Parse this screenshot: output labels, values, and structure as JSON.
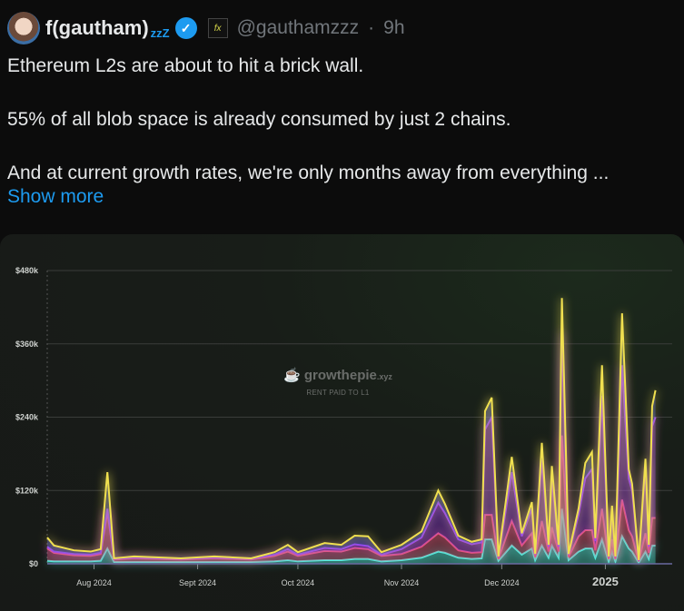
{
  "tweet": {
    "author_name": "f(gautham)",
    "name_suffix": "zzZ",
    "affiliate_badge": "fx",
    "handle": "@gauthamzzz",
    "separator": "·",
    "time": "9h",
    "paragraphs": [
      "Ethereum L2s are about to hit a brick wall.",
      "55% of all blob space is already consumed by just 2 chains.",
      "And at current growth rates, we're only months away from everything ..."
    ],
    "show_more": "Show more",
    "icons": {
      "verified": "verified-badge-icon",
      "avatar": "avatar"
    }
  },
  "watermark": {
    "brand": "growthepie",
    "brand_suffix": ".xyz",
    "subtitle": "RENT PAID TO L1"
  },
  "chart_data": {
    "type": "area",
    "stacked": true,
    "title": "RENT PAID TO L1",
    "ylim": [
      0,
      480
    ],
    "xlim": [
      "2024-07-18",
      "2025-01-21"
    ],
    "y_ticks": [
      "$0",
      "$120k",
      "$240k",
      "$360k",
      "$480k"
    ],
    "y_tick_values": [
      0,
      120,
      240,
      360,
      480
    ],
    "x_ticks": [
      "Aug 2024",
      "Sept 2024",
      "Oct 2024",
      "Nov 2024",
      "Dec 2024",
      "2025"
    ],
    "x_tick_dates": [
      "2024-08-01",
      "2024-09-01",
      "2024-10-01",
      "2024-11-01",
      "2024-12-01",
      "2025-01-01"
    ],
    "grid": true,
    "legend": "none",
    "colors": [
      "#4ff0e0",
      "#e8557a",
      "#a040f0",
      "#4a5cf0",
      "#f0e050",
      "#e8e8e8"
    ],
    "x": [
      "2024-07-18",
      "2024-07-20",
      "2024-07-26",
      "2024-07-31",
      "2024-08-03",
      "2024-08-05",
      "2024-08-07",
      "2024-08-13",
      "2024-08-27",
      "2024-09-06",
      "2024-09-17",
      "2024-09-24",
      "2024-09-28",
      "2024-10-01",
      "2024-10-09",
      "2024-10-14",
      "2024-10-18",
      "2024-10-22",
      "2024-10-26",
      "2024-11-01",
      "2024-11-07",
      "2024-11-12",
      "2024-11-14",
      "2024-11-18",
      "2024-11-22",
      "2024-11-25",
      "2024-11-26",
      "2024-11-28",
      "2024-11-30",
      "2024-12-04",
      "2024-12-07",
      "2024-12-10",
      "2024-12-11",
      "2024-12-13",
      "2024-12-15",
      "2024-12-16",
      "2024-12-18",
      "2024-12-19",
      "2024-12-21",
      "2024-12-24",
      "2024-12-26",
      "2024-12-28",
      "2024-12-29",
      "2024-12-31",
      "2025-01-02",
      "2025-01-03",
      "2025-01-04",
      "2025-01-06",
      "2025-01-08",
      "2025-01-09",
      "2025-01-11",
      "2025-01-13",
      "2025-01-14",
      "2025-01-15",
      "2025-01-16"
    ],
    "series": [
      {
        "values": [
          5,
          4,
          4,
          4,
          5,
          25,
          3,
          3,
          3,
          3,
          3,
          4,
          6,
          4,
          6,
          6,
          8,
          8,
          4,
          6,
          10,
          20,
          18,
          10,
          8,
          9,
          40,
          40,
          5,
          30,
          15,
          25,
          6,
          30,
          10,
          30,
          10,
          90,
          6,
          20,
          25,
          25,
          10,
          40,
          4,
          20,
          4,
          45,
          25,
          20,
          2,
          20,
          8,
          30,
          30
        ]
      },
      {
        "values": [
          20,
          14,
          10,
          9,
          11,
          60,
          4,
          6,
          4,
          6,
          4,
          9,
          14,
          9,
          15,
          14,
          18,
          16,
          9,
          10,
          18,
          30,
          25,
          12,
          10,
          10,
          40,
          40,
          3,
          40,
          15,
          25,
          5,
          40,
          10,
          30,
          10,
          120,
          5,
          25,
          30,
          30,
          12,
          50,
          4,
          20,
          4,
          60,
          30,
          25,
          2,
          30,
          10,
          45,
          45
        ]
      },
      {
        "values": [
          3,
          2,
          2,
          2,
          2,
          5,
          1,
          1,
          1,
          1,
          1,
          2,
          4,
          2,
          5,
          4,
          6,
          5,
          2,
          8,
          15,
          50,
          40,
          18,
          14,
          16,
          140,
          160,
          3,
          80,
          15,
          40,
          4,
          100,
          8,
          80,
          8,
          170,
          4,
          36,
          85,
          100,
          15,
          185,
          3,
          45,
          3,
          220,
          85,
          75,
          1,
          110,
          10,
          150,
          165
        ]
      },
      {
        "values": [
          15,
          10,
          6,
          5,
          6,
          60,
          1,
          2,
          1,
          2,
          1,
          4,
          7,
          4,
          8,
          7,
          14,
          16,
          4,
          7,
          10,
          20,
          15,
          6,
          4,
          5,
          30,
          32,
          1,
          25,
          5,
          11,
          1,
          28,
          3,
          20,
          3,
          55,
          1,
          10,
          25,
          28,
          5,
          50,
          1,
          10,
          1,
          85,
          15,
          11,
          1,
          12,
          3,
          33,
          44
        ]
      }
    ]
  }
}
